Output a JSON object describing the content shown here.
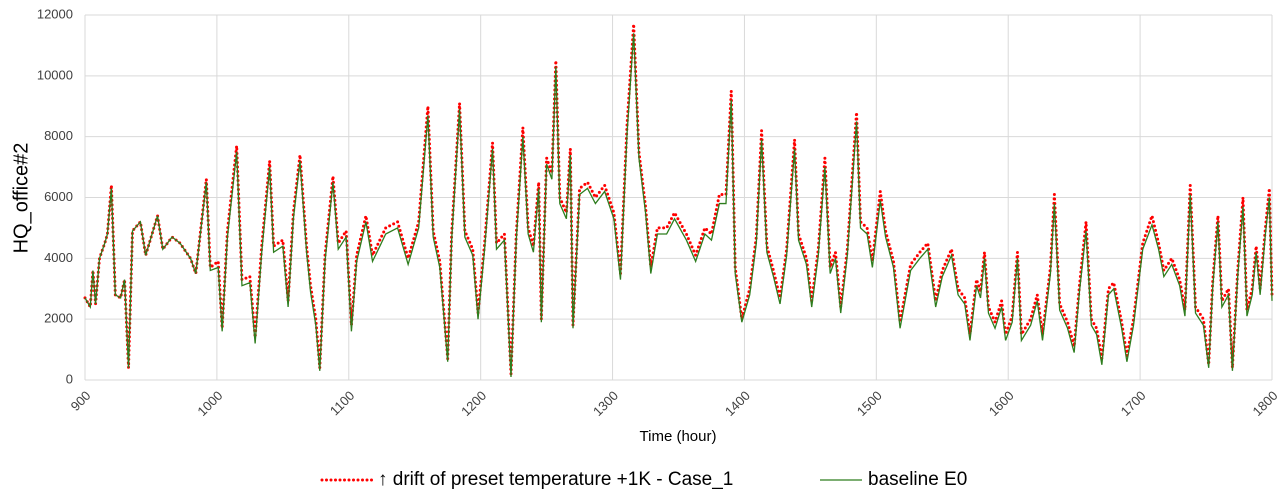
{
  "chart_data": {
    "type": "line",
    "x_label": "Time (hour)",
    "y_label": "HQ_office#2",
    "xlim": [
      900,
      1800
    ],
    "xticks": [
      900,
      1000,
      1100,
      1200,
      1300,
      1400,
      1500,
      1600,
      1700,
      1800
    ],
    "ylim": [
      0,
      12000
    ],
    "yticks": [
      0,
      2000,
      4000,
      6000,
      8000,
      10000,
      12000
    ],
    "grid": true,
    "legend": "bottom",
    "x": [
      900,
      904,
      906,
      908,
      911,
      915,
      917,
      920,
      923,
      927,
      930,
      933,
      936,
      942,
      946,
      955,
      959,
      966,
      972,
      980,
      984,
      992,
      995,
      1001,
      1004,
      1008,
      1015,
      1019,
      1025,
      1029,
      1034,
      1040,
      1043,
      1050,
      1054,
      1058,
      1063,
      1068,
      1071,
      1075,
      1078,
      1082,
      1088,
      1092,
      1098,
      1102,
      1106,
      1113,
      1118,
      1128,
      1137,
      1145,
      1153,
      1160,
      1164,
      1169,
      1175,
      1178,
      1184,
      1188,
      1194,
      1198,
      1203,
      1209,
      1212,
      1218,
      1223,
      1227,
      1232,
      1236,
      1240,
      1244,
      1246,
      1250,
      1254,
      1257,
      1260,
      1265,
      1268,
      1270,
      1275,
      1281,
      1287,
      1294,
      1301,
      1306,
      1311,
      1316,
      1320,
      1325,
      1329,
      1334,
      1341,
      1347,
      1356,
      1363,
      1370,
      1375,
      1381,
      1386,
      1390,
      1393,
      1398,
      1404,
      1409,
      1413,
      1417,
      1422,
      1427,
      1432,
      1438,
      1441,
      1447,
      1451,
      1456,
      1461,
      1465,
      1469,
      1473,
      1478,
      1485,
      1488,
      1493,
      1497,
      1503,
      1507,
      1513,
      1518,
      1526,
      1533,
      1539,
      1545,
      1550,
      1557,
      1562,
      1567,
      1571,
      1576,
      1579,
      1582,
      1585,
      1590,
      1595,
      1598,
      1603,
      1607,
      1610,
      1617,
      1622,
      1626,
      1632,
      1635,
      1639,
      1645,
      1650,
      1654,
      1659,
      1663,
      1667,
      1671,
      1676,
      1680,
      1686,
      1690,
      1695,
      1702,
      1709,
      1714,
      1718,
      1724,
      1730,
      1734,
      1738,
      1742,
      1748,
      1752,
      1755,
      1759,
      1762,
      1767,
      1770,
      1774,
      1778,
      1781,
      1785,
      1788,
      1791,
      1795,
      1798,
      1800
    ],
    "series": [
      {
        "name": "↑ drift of preset temperature +1K - Case_1",
        "color": "#ff0000",
        "line_style": "dotted",
        "values": [
          2700,
          2400,
          3600,
          2500,
          4000,
          4500,
          4800,
          6400,
          2800,
          2700,
          3300,
          400,
          4900,
          5200,
          4100,
          5400,
          4300,
          4700,
          4500,
          4000,
          3500,
          6600,
          3700,
          3900,
          1700,
          4900,
          7700,
          3300,
          3400,
          1400,
          4400,
          7200,
          4400,
          4600,
          2600,
          5500,
          7400,
          4400,
          3100,
          2000,
          400,
          4100,
          6700,
          4500,
          4900,
          1800,
          4100,
          5400,
          4100,
          5000,
          5200,
          4000,
          5200,
          9000,
          4900,
          3900,
          700,
          4800,
          9100,
          4900,
          4300,
          2200,
          4500,
          7800,
          4500,
          4800,
          200,
          4800,
          8300,
          5000,
          4400,
          6500,
          2000,
          7300,
          6800,
          10500,
          6000,
          5500,
          7600,
          1800,
          6300,
          6500,
          6000,
          6400,
          5500,
          3500,
          8400,
          11700,
          7500,
          5700,
          3700,
          5000,
          5000,
          5500,
          4800,
          4100,
          5000,
          4800,
          6100,
          6100,
          9500,
          3700,
          2000,
          3000,
          4700,
          8200,
          4400,
          3600,
          2700,
          4300,
          7900,
          4800,
          4000,
          2600,
          4300,
          7300,
          3700,
          4200,
          2400,
          4300,
          8800,
          5200,
          5000,
          3900,
          6200,
          4900,
          3900,
          1900,
          3800,
          4200,
          4500,
          2600,
          3600,
          4300,
          3000,
          2700,
          1500,
          3300,
          2900,
          4200,
          2400,
          1900,
          2600,
          1500,
          2100,
          4200,
          1500,
          2000,
          2800,
          1500,
          3700,
          6100,
          2500,
          1900,
          1100,
          3100,
          5200,
          2000,
          1700,
          700,
          3000,
          3200,
          1900,
          800,
          2000,
          4500,
          5400,
          4500,
          3600,
          4000,
          3300,
          2300,
          6400,
          2400,
          2000,
          500,
          3200,
          5400,
          2600,
          3000,
          400,
          3600,
          6000,
          2300,
          3000,
          4400,
          3000,
          5000,
          6300,
          2800
        ]
      },
      {
        "name": "baseline E0",
        "color": "#2e7d1e",
        "line_style": "solid",
        "values": [
          2700,
          2400,
          3600,
          2500,
          4000,
          4500,
          4800,
          6300,
          2800,
          2700,
          3300,
          400,
          4900,
          5200,
          4100,
          5400,
          4300,
          4700,
          4500,
          4000,
          3500,
          6500,
          3600,
          3700,
          1600,
          4700,
          7500,
          3100,
          3200,
          1200,
          4200,
          7000,
          4200,
          4400,
          2400,
          5300,
          7200,
          4200,
          2900,
          1800,
          300,
          3900,
          6500,
          4300,
          4700,
          1600,
          3900,
          5200,
          3900,
          4800,
          5000,
          3800,
          5000,
          8700,
          4700,
          3700,
          600,
          4600,
          8900,
          4700,
          4100,
          2000,
          4300,
          7600,
          4300,
          4600,
          100,
          4600,
          8000,
          4800,
          4200,
          6300,
          1900,
          7100,
          6600,
          10300,
          5800,
          5300,
          7400,
          1700,
          6100,
          6300,
          5800,
          6200,
          5300,
          3300,
          8100,
          11400,
          7300,
          5500,
          3500,
          4800,
          4800,
          5300,
          4600,
          3900,
          4800,
          4600,
          5800,
          5800,
          9200,
          3500,
          1900,
          2800,
          4500,
          7900,
          4200,
          3400,
          2500,
          4100,
          7600,
          4600,
          3800,
          2400,
          4100,
          7000,
          3500,
          4000,
          2200,
          4100,
          8500,
          5000,
          4800,
          3700,
          5900,
          4700,
          3700,
          1700,
          3600,
          4000,
          4300,
          2400,
          3400,
          4100,
          2800,
          2500,
          1300,
          3100,
          2700,
          4000,
          2200,
          1700,
          2400,
          1300,
          1900,
          4000,
          1300,
          1800,
          2600,
          1300,
          3500,
          5800,
          2300,
          1700,
          900,
          2900,
          4900,
          1800,
          1500,
          500,
          2800,
          3000,
          1700,
          600,
          1800,
          4300,
          5100,
          4300,
          3400,
          3800,
          3100,
          2100,
          6100,
          2200,
          1800,
          400,
          3000,
          5200,
          2400,
          2800,
          300,
          3400,
          5700,
          2100,
          2800,
          4200,
          2800,
          4800,
          6000,
          2600
        ]
      }
    ]
  }
}
